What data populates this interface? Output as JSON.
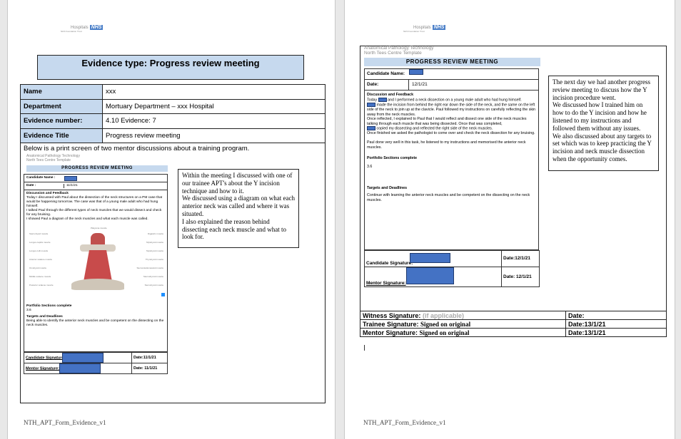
{
  "logo": {
    "text": "Hospitals",
    "badge": "NHS",
    "sub": "NHS Foundation Trust"
  },
  "footer": "NTH_APT_Form_Evidence_v1",
  "page1": {
    "title": "Evidence type: Progress review meeting",
    "rows": [
      {
        "label": "Name",
        "value": "xxx"
      },
      {
        "label": "Department",
        "value": "Mortuary Department – xxx Hospital"
      },
      {
        "label": "Evidence number:",
        "value": "4.10 Evidence: 7"
      },
      {
        "label": "Evidence Title",
        "value": "Progress review meeting"
      }
    ],
    "intro": "Below is a print screen of two mentor discussions about a training program.",
    "screenshot": {
      "org1": "Anatomical Pathology Technology",
      "org2": "North Tees Centre Template",
      "banner": "PROGRESS REVIEW MEETING",
      "candidate_label": "Candidate Name :",
      "date_label": "Date :",
      "date": "11/1/21",
      "discussion_heading": "Discussion and Feedback",
      "discussion": "Today I discussed with Paul about the dissection of the neck structures on a PM case that would be happening tomorrow. The case was that of a young male adult who had hung himself.\nI talked Paul through the different types of neck muscles that we would dissect and check for any bruising.\nI showed Paul a diagram of the neck muscles and what each muscle was called.",
      "muscles_left": [
        "Sternohyoid muscle",
        "Longus capitis muscle",
        "Longus colli muscle",
        "Anterior scalene muscle",
        "Omohyoid muscle",
        "Middle scalene muscle",
        "Posterior scalene muscle"
      ],
      "muscles_right": [
        "Digastric muscle",
        "Mylohyoid muscle",
        "Stylohyoid muscle",
        "Thyrohyoid muscle",
        "Sternocleidomastoid muscle",
        "Sternothyroid muscle",
        "Sternohyoid muscle"
      ],
      "muscle_top": "Platysma muscle",
      "portfolio_heading": "Portfolio Sections complete",
      "portfolio": "3.6",
      "targets_heading": "Targets and Deadlines",
      "targets": "Being able to identify the anterior neck muscles and be competent on the dissecting on the neck muscles.",
      "candidate_sig": "Candidate Signature",
      "candidate_date": "Date:11/1/21",
      "mentor_sig": "Mentor Signature:",
      "mentor_date": "Date: 11/1/21"
    },
    "note": "Within the meeting I discussed with one of our trainee APT's about the Y incision technique and how to it.\nWe discussed using a diagram on what each anterior neck was called and where it was situated.\nI also explained the reason behind dissecting each neck muscle and what to look for."
  },
  "page2": {
    "screenshot": {
      "org1": "Anatomical Pathology Technology",
      "org2": "North Tees Centre Template",
      "banner": "PROGRESS REVIEW MEETING",
      "candidate_label": "Candidate Name:",
      "date_label": "Date:",
      "date": "12/1/21",
      "discussion_heading": "Discussion  and Feedback",
      "discussion_1a": "Today",
      "discussion_1b": "and I performed a neck dissection on a young male adult who had hung himself.",
      "discussion_2": "made the incision from behind the right ear down the side of the neck, and the same on the left side of the neck to join up at the clavicle. Paul followed my instructions on carefully reflecting the skin away from the neck muscles.",
      "discussion_3": "Once reflected, I explained to Paul that I would reflect and dissect one side of the neck muscles talking through each muscle that was being dissected. Once that was completed,",
      "discussion_4": "copied my dissecting and reflected the right side of the neck muscles.",
      "discussion_5": "Once finished we asked the pathologist to come over and check the neck dissection for any bruising.",
      "discussion_6": "Paul done very well in this task, he listened to my instructions and memorised the anterior neck muscles.",
      "portfolio_heading": "Portfolio Sections complete",
      "portfolio": "3.6",
      "targets_heading": "Targets and Deadlines",
      "targets": "Continue with learning the anterior neck muscles and be competent on the dissecting on the neck muscles.",
      "candidate_sig": "Candidate Signature:",
      "candidate_date": "Date:12/1/21",
      "mentor_sig": "Mentor Signature:",
      "mentor_date": "Date: 12/1/21"
    },
    "note": "The next day we had another progress review meeting to discuss how the Y incision procedure went.\nWe discussed how I trained him on how to do the Y incision and how he listened to my instructions and followed them without any issues.\nWe also discussed about any targets to set which was to keep practicing the Y incision and neck muscle dissection when the opportunity comes.",
    "signatures": [
      {
        "label": "Witness Signature:",
        "value": "(if applicable)",
        "date": "Date:"
      },
      {
        "label": "Trainee Signature:",
        "value": "Signed on original",
        "date": "Date:13/1/21"
      },
      {
        "label": "Mentor Signature:",
        "value": " Signed on original",
        "date": "Date:13/1/21"
      }
    ]
  },
  "colors": {
    "header_fill": "#c6d9ee",
    "redaction": "#4472c4",
    "muscle": "#c0504d"
  }
}
